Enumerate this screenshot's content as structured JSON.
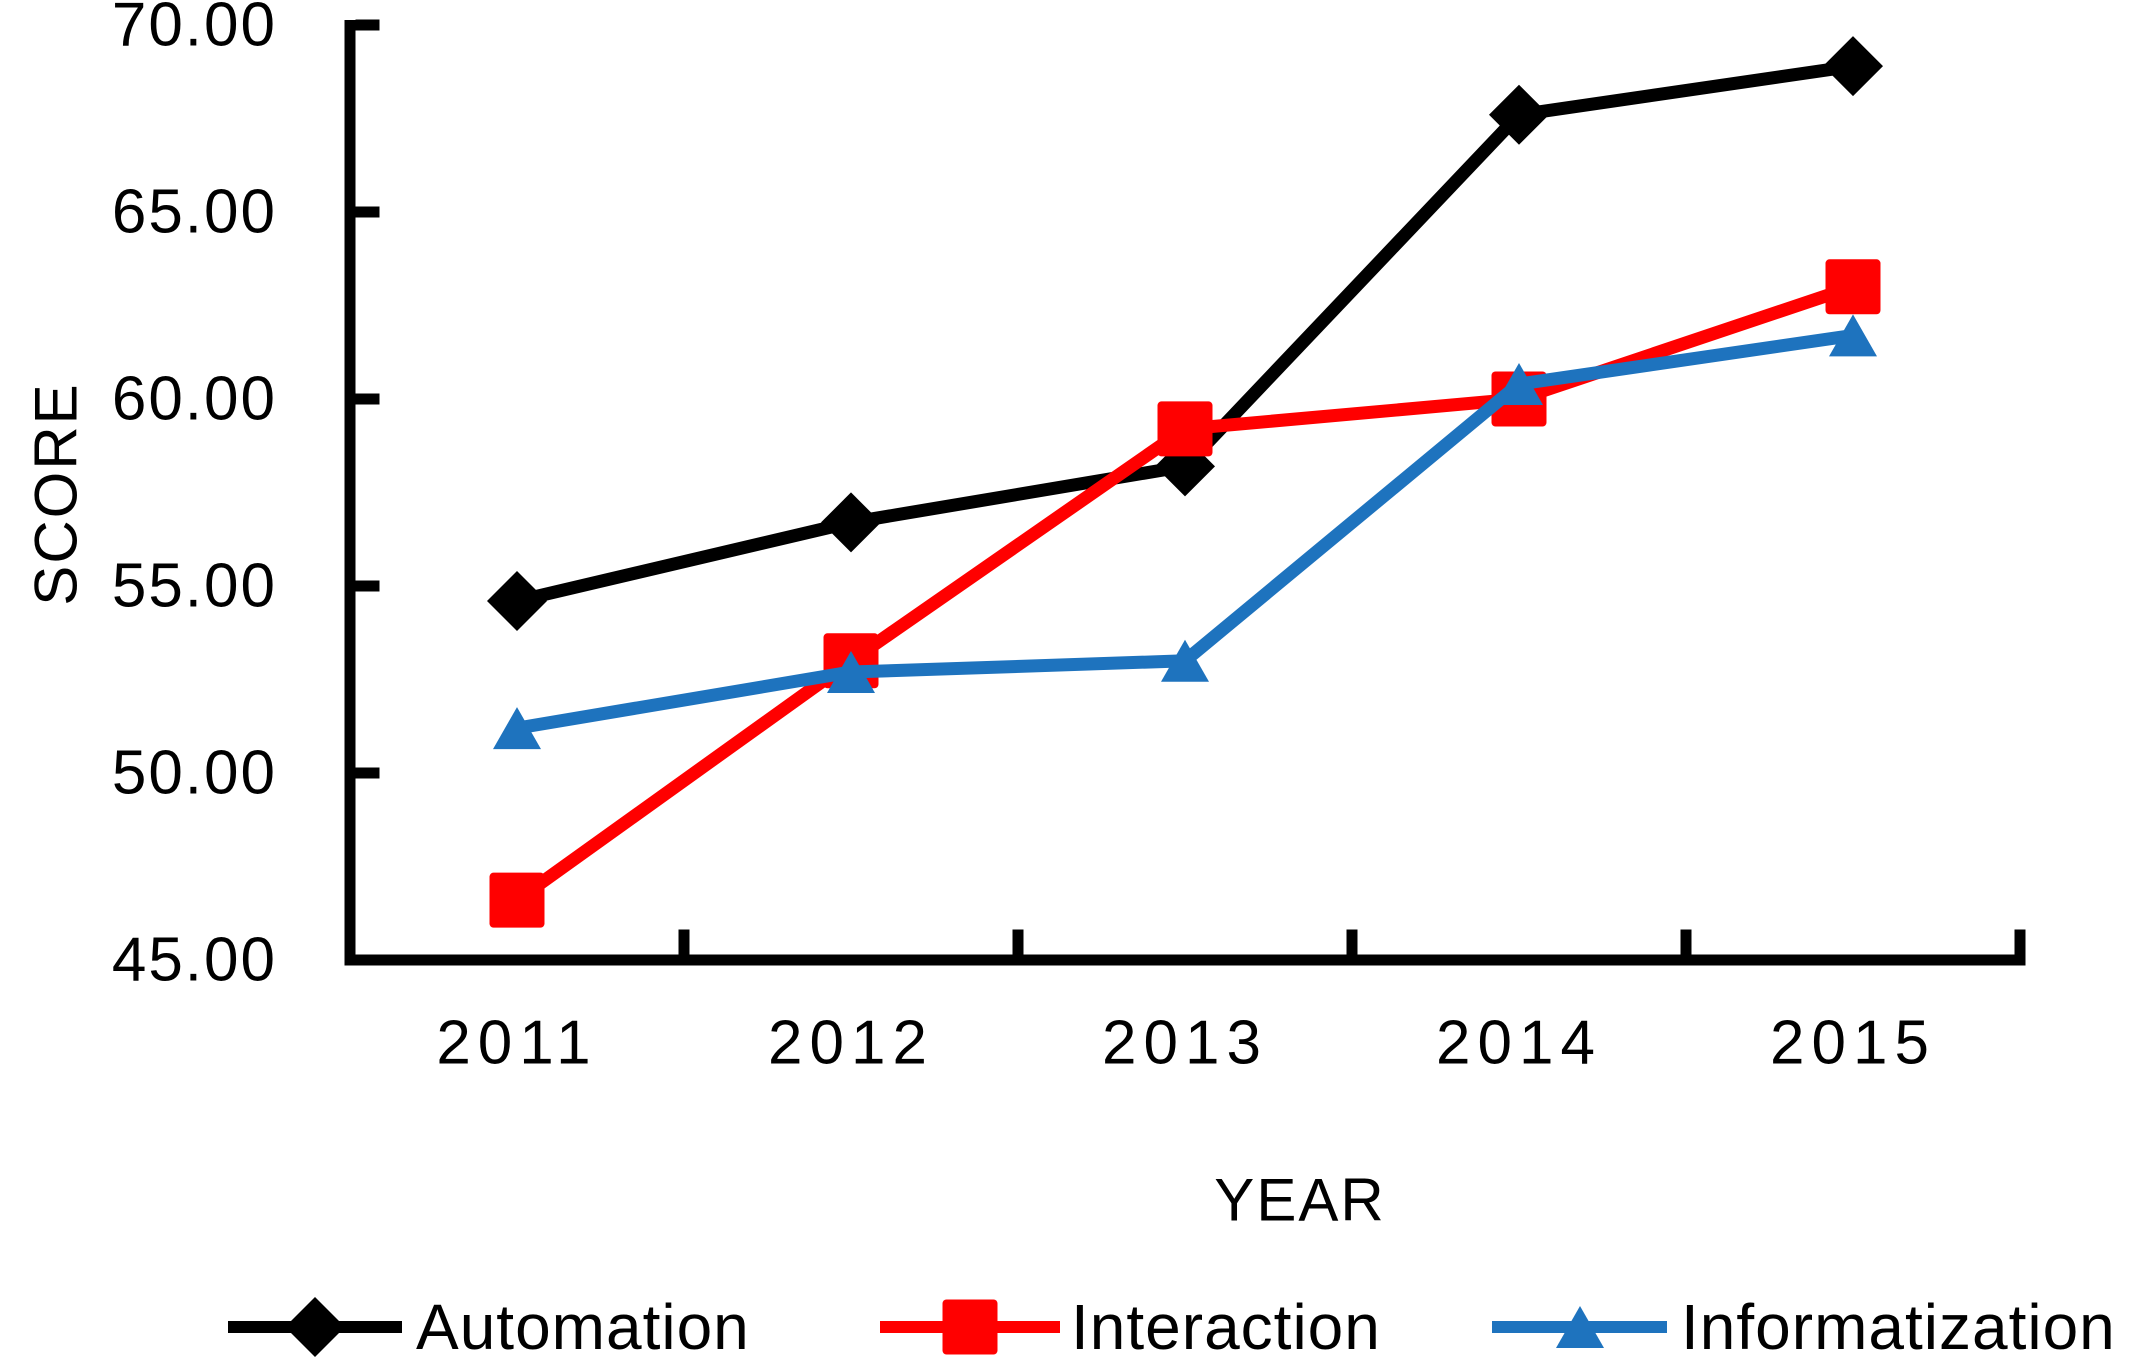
{
  "chart_data": {
    "type": "line",
    "title": "",
    "xlabel": "YEAR",
    "ylabel": "SCORE",
    "categories": [
      "2011",
      "2012",
      "2013",
      "2014",
      "2015"
    ],
    "series": [
      {
        "name": "Automation",
        "color": "#000000",
        "marker": "diamond",
        "values": [
          54.6,
          56.7,
          58.2,
          67.6,
          68.9
        ]
      },
      {
        "name": "Interaction",
        "color": "#FF0000",
        "marker": "square",
        "values": [
          46.6,
          53.0,
          59.2,
          60.0,
          63.0
        ]
      },
      {
        "name": "Informatization",
        "color": "#1E73BE",
        "marker": "triangle",
        "values": [
          51.2,
          52.7,
          53.0,
          60.4,
          61.7
        ]
      }
    ],
    "ylim": [
      45,
      70
    ],
    "ytick_step": 5,
    "yticks": [
      "45.00",
      "50.00",
      "55.00",
      "60.00",
      "65.00",
      "70.00"
    ],
    "grid": false,
    "legend_position": "bottom",
    "axis_color": "#000000",
    "background_color": "#ffffff"
  }
}
